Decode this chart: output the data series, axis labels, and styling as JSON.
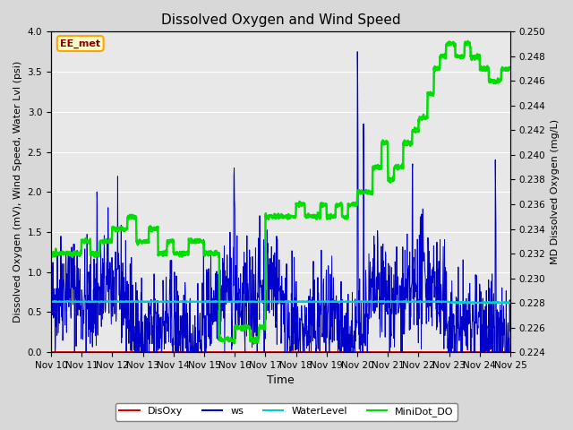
{
  "title": "Dissolved Oxygen and Wind Speed",
  "xlabel": "Time",
  "ylabel_left": "Dissolved Oxygen (mV), Wind Speed, Water Lvl (psi)",
  "ylabel_right": "MD Dissolved Oxygen (mg/L)",
  "annotation": "EE_met",
  "ylim_left": [
    0.0,
    4.0
  ],
  "ylim_right": [
    0.224,
    0.25
  ],
  "x_tick_labels": [
    "Nov 10",
    "Nov 11",
    "Nov 12",
    "Nov 13",
    "Nov 14",
    "Nov 15",
    "Nov 16",
    "Nov 17",
    "Nov 18",
    "Nov 19",
    "Nov 20",
    "Nov 21",
    "Nov 22",
    "Nov 23",
    "Nov 24",
    "Nov 25"
  ],
  "legend_entries": [
    "DisOxy",
    "ws",
    "WaterLevel",
    "MiniDot_DO"
  ],
  "legend_colors": [
    "#dd0000",
    "#0000cc",
    "#00cccc",
    "#00dd00"
  ],
  "fig_bg_color": "#d8d8d8",
  "plot_bg_color": "#e8e8e8",
  "disoxy_color": "#dd0000",
  "ws_color": "#0000cc",
  "waterlevel_color": "#00cccc",
  "minidot_color": "#00dd00",
  "ws_linewidth": 0.7,
  "waterlevel_linewidth": 1.5,
  "minidot_linewidth": 1.8,
  "disoxy_linewidth": 1.5,
  "title_fontsize": 11,
  "label_fontsize": 8,
  "tick_fontsize": 7.5,
  "xlabel_fontsize": 9,
  "right_ticks": [
    0.224,
    0.226,
    0.228,
    0.23,
    0.232,
    0.234,
    0.236,
    0.238,
    0.24,
    0.242,
    0.244,
    0.246,
    0.248,
    0.25
  ],
  "waterlevel_value": 0.63,
  "n_days": 15,
  "seed": 42
}
